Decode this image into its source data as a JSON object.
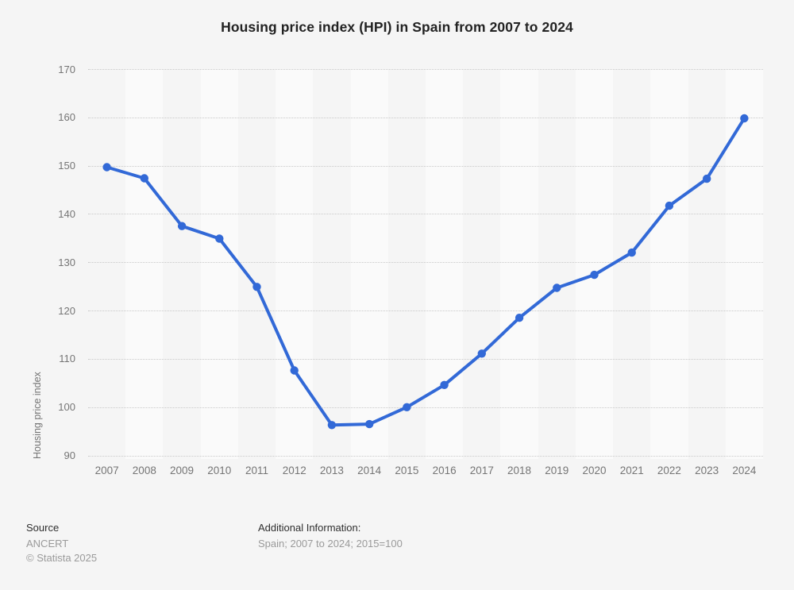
{
  "title": "Housing price index (HPI) in Spain from 2007 to 2024",
  "chart_data": {
    "type": "line",
    "title": "Housing price index (HPI) in Spain from 2007 to 2024",
    "categories": [
      "2007",
      "2008",
      "2009",
      "2010",
      "2011",
      "2012",
      "2013",
      "2014",
      "2015",
      "2016",
      "2017",
      "2018",
      "2019",
      "2020",
      "2021",
      "2022",
      "2023",
      "2024"
    ],
    "values": [
      149.7,
      147.4,
      137.5,
      134.9,
      124.9,
      107.6,
      96.3,
      96.5,
      100.0,
      104.6,
      111.1,
      118.5,
      124.7,
      127.4,
      132.0,
      141.7,
      147.3,
      159.8
    ],
    "series_name": "Housing price index",
    "xlabel": "",
    "ylabel": "Housing price index",
    "ylim": [
      90,
      170
    ],
    "ytick_step": 10,
    "yticks": [
      90,
      100,
      110,
      120,
      130,
      140,
      150,
      160,
      170
    ],
    "grid": "horizontal dotted lines on",
    "legend": "none",
    "layout": "alternating vertical column stripes behind series"
  },
  "footer": {
    "source_label": "Source",
    "source_value": "ANCERT",
    "copyright": "© Statista 2025",
    "additional_info_label": "Additional Information:",
    "additional_info_value": "Spain; 2007 to 2024; 2015=100"
  },
  "colors": {
    "background": "#f5f5f5",
    "band_light": "#fafafa",
    "line": "#3269d7",
    "marker": "#3269d7",
    "gridline": "#c9c9c9",
    "tick_text": "#757575",
    "title_text": "#222222",
    "footer_dark_text": "#2e2e2e",
    "footer_light_text": "#9a9a9a"
  }
}
